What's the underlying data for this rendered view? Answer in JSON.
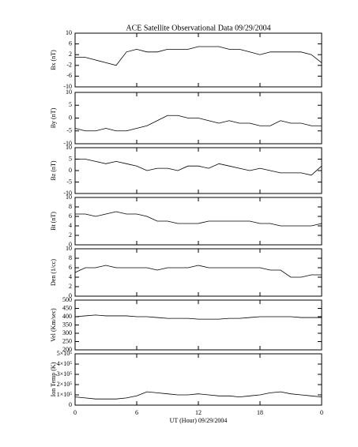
{
  "title": "ACE Satellite Observational Data   09/29/2004",
  "xlabel": "UT (Hour)  09/29/2004",
  "xlim": [
    0,
    24
  ],
  "xticks": [
    0,
    6,
    12,
    18,
    {
      "value": 24,
      "label": "0"
    }
  ],
  "chart_data": [
    {
      "type": "line",
      "ylabel": "Bx (nT)",
      "color": "#000000",
      "x": [
        0,
        1,
        2,
        3,
        4,
        5,
        6,
        7,
        8,
        9,
        10,
        11,
        12,
        13,
        14,
        15,
        16,
        17,
        18,
        19,
        20,
        21,
        22,
        23,
        24
      ],
      "values": [
        1,
        1,
        0,
        -1,
        -2,
        3,
        4,
        3,
        3,
        4,
        4,
        4,
        5,
        5,
        5,
        4,
        4,
        3,
        2,
        3,
        3,
        3,
        3,
        2,
        -1
      ],
      "ylim": [
        -10,
        10
      ],
      "yticks": [
        -10,
        -6,
        -2,
        2,
        6,
        10
      ]
    },
    {
      "type": "line",
      "ylabel": "By (nT)",
      "color": "#000000",
      "x": [
        0,
        1,
        2,
        3,
        4,
        5,
        6,
        7,
        8,
        9,
        10,
        11,
        12,
        13,
        14,
        15,
        16,
        17,
        18,
        19,
        20,
        21,
        22,
        23,
        24
      ],
      "values": [
        -4,
        -5,
        -5,
        -4,
        -5,
        -5,
        -4,
        -3,
        -1,
        1,
        1,
        0,
        0,
        -1,
        -2,
        -1,
        -2,
        -2,
        -3,
        -3,
        -1,
        -2,
        -2,
        -3,
        -3
      ],
      "ylim": [
        -10,
        10
      ],
      "yticks": [
        -10,
        -5,
        0,
        5,
        10
      ]
    },
    {
      "type": "line",
      "ylabel": "Bz (nT)",
      "color": "#000000",
      "x": [
        0,
        1,
        2,
        3,
        4,
        5,
        6,
        7,
        8,
        9,
        10,
        11,
        12,
        13,
        14,
        15,
        16,
        17,
        18,
        19,
        20,
        21,
        22,
        23,
        24
      ],
      "values": [
        5,
        5,
        4,
        3,
        4,
        3,
        2,
        0,
        1,
        1,
        0,
        2,
        2,
        1,
        3,
        2,
        1,
        0,
        1,
        0,
        -1,
        -1,
        -1,
        -2,
        2
      ],
      "ylim": [
        -10,
        10
      ],
      "yticks": [
        -10,
        -5,
        0,
        5,
        10
      ]
    },
    {
      "type": "line",
      "ylabel": "Bt (nT)",
      "color": "#000000",
      "x": [
        0,
        1,
        2,
        3,
        4,
        5,
        6,
        7,
        8,
        9,
        10,
        11,
        12,
        13,
        14,
        15,
        16,
        17,
        18,
        19,
        20,
        21,
        22,
        23,
        24
      ],
      "values": [
        6.5,
        6.5,
        6,
        6.5,
        7,
        6.5,
        6.5,
        6,
        5,
        5,
        4.5,
        4.5,
        4.5,
        5,
        5,
        5,
        5,
        5,
        4.5,
        4.5,
        4,
        4,
        4,
        4,
        4.5
      ],
      "ylim": [
        0,
        10
      ],
      "yticks": [
        0,
        2,
        4,
        6,
        8,
        10
      ]
    },
    {
      "type": "line",
      "ylabel": "Den (1/cc)",
      "color": "#000000",
      "x": [
        0,
        1,
        2,
        3,
        4,
        5,
        6,
        7,
        8,
        9,
        10,
        11,
        12,
        13,
        14,
        15,
        16,
        17,
        18,
        19,
        20,
        21,
        22,
        23,
        24
      ],
      "values": [
        5,
        6,
        6,
        6.5,
        6,
        6,
        6,
        6,
        5.5,
        6,
        6,
        6,
        6.5,
        6,
        6,
        6,
        6,
        6,
        6,
        5.5,
        5.5,
        4,
        4,
        4.5,
        4.5
      ],
      "ylim": [
        0,
        10
      ],
      "yticks": [
        0,
        2,
        4,
        6,
        8,
        10
      ]
    },
    {
      "type": "line",
      "ylabel": "Vel (Km/sec)",
      "color": "#000000",
      "x": [
        0,
        1,
        2,
        3,
        4,
        5,
        6,
        7,
        8,
        9,
        10,
        11,
        12,
        13,
        14,
        15,
        16,
        17,
        18,
        19,
        20,
        21,
        22,
        23,
        24
      ],
      "values": [
        400,
        405,
        410,
        405,
        405,
        405,
        400,
        400,
        395,
        390,
        390,
        390,
        385,
        385,
        385,
        390,
        390,
        395,
        400,
        400,
        400,
        400,
        395,
        395,
        395
      ],
      "ylim": [
        200,
        500
      ],
      "yticks": [
        200,
        250,
        300,
        350,
        400,
        450,
        500
      ]
    },
    {
      "type": "line",
      "ylabel": "Ion Temp (K)",
      "color": "#000000",
      "x": [
        0,
        1,
        2,
        3,
        4,
        5,
        6,
        7,
        8,
        9,
        10,
        11,
        12,
        13,
        14,
        15,
        16,
        17,
        18,
        19,
        20,
        21,
        22,
        23,
        24
      ],
      "values": [
        80000,
        70000,
        60000,
        60000,
        60000,
        70000,
        90000,
        130000,
        120000,
        110000,
        100000,
        100000,
        110000,
        100000,
        90000,
        90000,
        80000,
        90000,
        100000,
        120000,
        130000,
        110000,
        100000,
        90000,
        80000
      ],
      "ylim": [
        0,
        500000
      ],
      "yticks": [
        0,
        {
          "value": 100000,
          "label": "1×10⁵"
        },
        {
          "value": 200000,
          "label": "2×10⁵"
        },
        {
          "value": 300000,
          "label": "3×10⁵"
        },
        {
          "value": 400000,
          "label": "4×10⁵"
        },
        {
          "value": 500000,
          "label": "5×10⁵"
        }
      ]
    }
  ]
}
